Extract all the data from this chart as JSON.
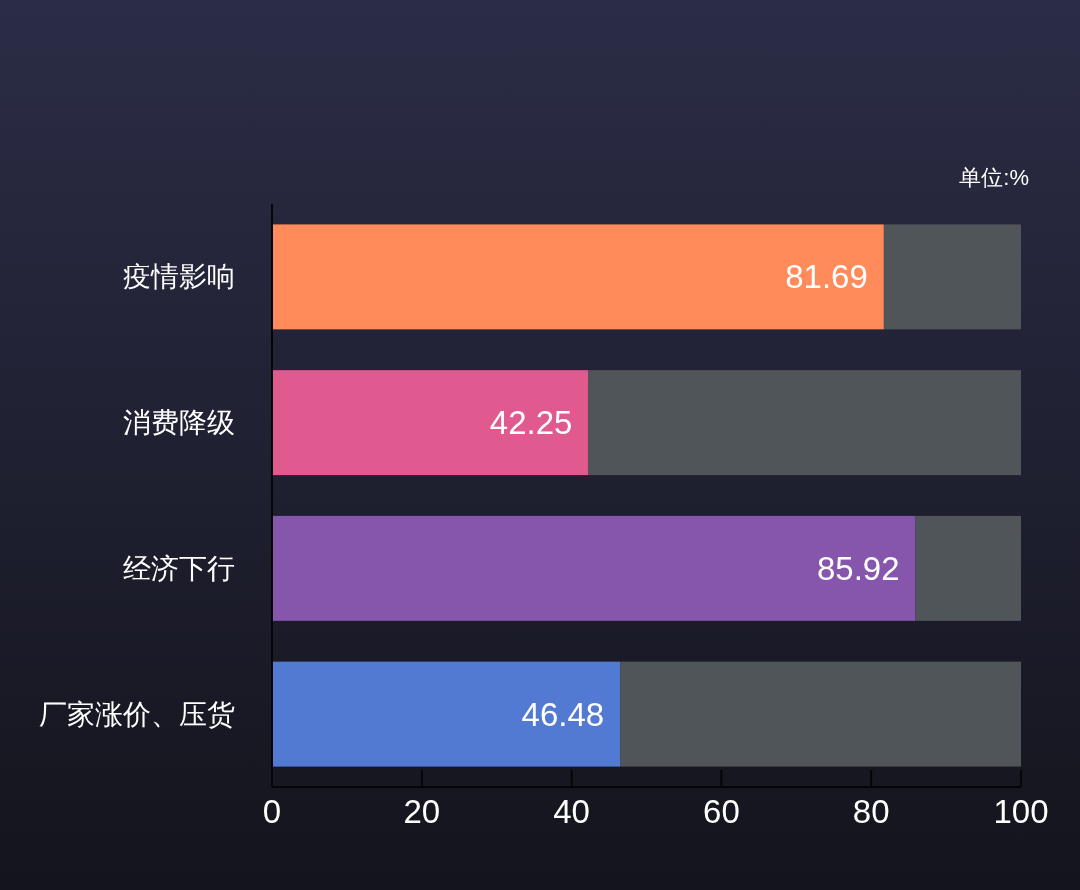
{
  "chart_data": {
    "type": "bar",
    "orientation": "horizontal",
    "stacked": true,
    "categories": [
      "疫情影响",
      "消费降级",
      "经济下行",
      "厂家涨价、压货"
    ],
    "series": [
      {
        "colors": [
          "#ff8a5a",
          "#e05a90",
          "#8556ab",
          "#527ad2"
        ],
        "values": [
          81.69,
          42.25,
          85.92,
          46.48
        ],
        "value_labels": [
          "81.69",
          "42.25",
          "85.92",
          "46.48"
        ]
      },
      {
        "color": "#50555a",
        "values": [
          18.31,
          57.75,
          14.08,
          53.52
        ]
      }
    ],
    "xlim": [
      0,
      100
    ],
    "xticks": [
      0,
      20,
      40,
      60,
      80,
      100
    ],
    "grid": false,
    "annotations": [
      "单位:%"
    ]
  }
}
